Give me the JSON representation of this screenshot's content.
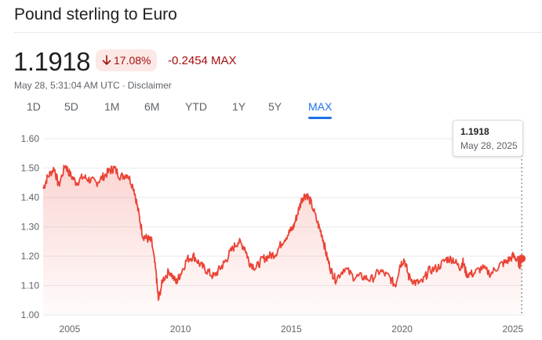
{
  "header": {
    "title": "Pound sterling to Euro"
  },
  "quote": {
    "price": "1.1918",
    "change_percent": "17.08%",
    "change_abs": "-0.2454 MAX",
    "timestamp": "May 28, 5:31:04 AM UTC",
    "separator": "·",
    "disclaimer": "Disclaimer"
  },
  "ranges": [
    "1D",
    "5D",
    "1M",
    "6M",
    "YTD",
    "1Y",
    "5Y",
    "MAX"
  ],
  "selected_range": "MAX",
  "tooltip": {
    "value": "1.1918",
    "date": "May 28, 2025"
  },
  "colors": {
    "line": "#ea4335",
    "negative": "#a50e0e",
    "negative_bg": "#fce8e6",
    "accent": "#1a73e8"
  },
  "chart_data": {
    "type": "area",
    "xlim": [
      2003.8,
      2025.5
    ],
    "ylim": [
      1.0,
      1.6
    ],
    "y_ticks": [
      "1.00",
      "1.10",
      "1.20",
      "1.30",
      "1.40",
      "1.50",
      "1.60"
    ],
    "x_ticks": [
      "2005",
      "2010",
      "2015",
      "2020",
      "2025"
    ],
    "x": [
      2003.8,
      2004.0,
      2004.3,
      2004.5,
      2004.8,
      2005.0,
      2005.3,
      2005.6,
      2005.9,
      2006.2,
      2006.5,
      2006.8,
      2007.0,
      2007.3,
      2007.6,
      2007.9,
      2008.1,
      2008.3,
      2008.5,
      2008.7,
      2008.9,
      2009.0,
      2009.2,
      2009.5,
      2009.8,
      2010.0,
      2010.3,
      2010.6,
      2010.9,
      2011.2,
      2011.5,
      2011.8,
      2012.0,
      2012.3,
      2012.6,
      2012.9,
      2013.1,
      2013.4,
      2013.7,
      2014.0,
      2014.3,
      2014.6,
      2014.9,
      2015.1,
      2015.3,
      2015.5,
      2015.7,
      2015.9,
      2016.2,
      2016.4,
      2016.6,
      2016.8,
      2017.0,
      2017.4,
      2017.8,
      2018.2,
      2018.6,
      2019.0,
      2019.4,
      2019.7,
      2019.9,
      2020.1,
      2020.3,
      2020.6,
      2020.9,
      2021.2,
      2021.6,
      2022.0,
      2022.3,
      2022.6,
      2022.75,
      2022.9,
      2023.2,
      2023.6,
      2024.0,
      2024.4,
      2024.7,
      2025.0,
      2025.2,
      2025.3,
      2025.4
    ],
    "y": [
      1.43,
      1.47,
      1.5,
      1.44,
      1.51,
      1.48,
      1.45,
      1.47,
      1.46,
      1.45,
      1.47,
      1.49,
      1.5,
      1.47,
      1.48,
      1.43,
      1.35,
      1.27,
      1.26,
      1.25,
      1.14,
      1.05,
      1.12,
      1.15,
      1.11,
      1.14,
      1.19,
      1.2,
      1.17,
      1.15,
      1.13,
      1.16,
      1.18,
      1.22,
      1.25,
      1.23,
      1.18,
      1.16,
      1.19,
      1.2,
      1.21,
      1.25,
      1.28,
      1.3,
      1.35,
      1.4,
      1.41,
      1.38,
      1.31,
      1.27,
      1.2,
      1.15,
      1.12,
      1.16,
      1.13,
      1.13,
      1.12,
      1.15,
      1.13,
      1.1,
      1.17,
      1.19,
      1.13,
      1.11,
      1.11,
      1.15,
      1.16,
      1.19,
      1.19,
      1.16,
      1.18,
      1.14,
      1.14,
      1.16,
      1.14,
      1.17,
      1.18,
      1.2,
      1.19,
      1.17,
      1.1918
    ],
    "grid": true
  }
}
